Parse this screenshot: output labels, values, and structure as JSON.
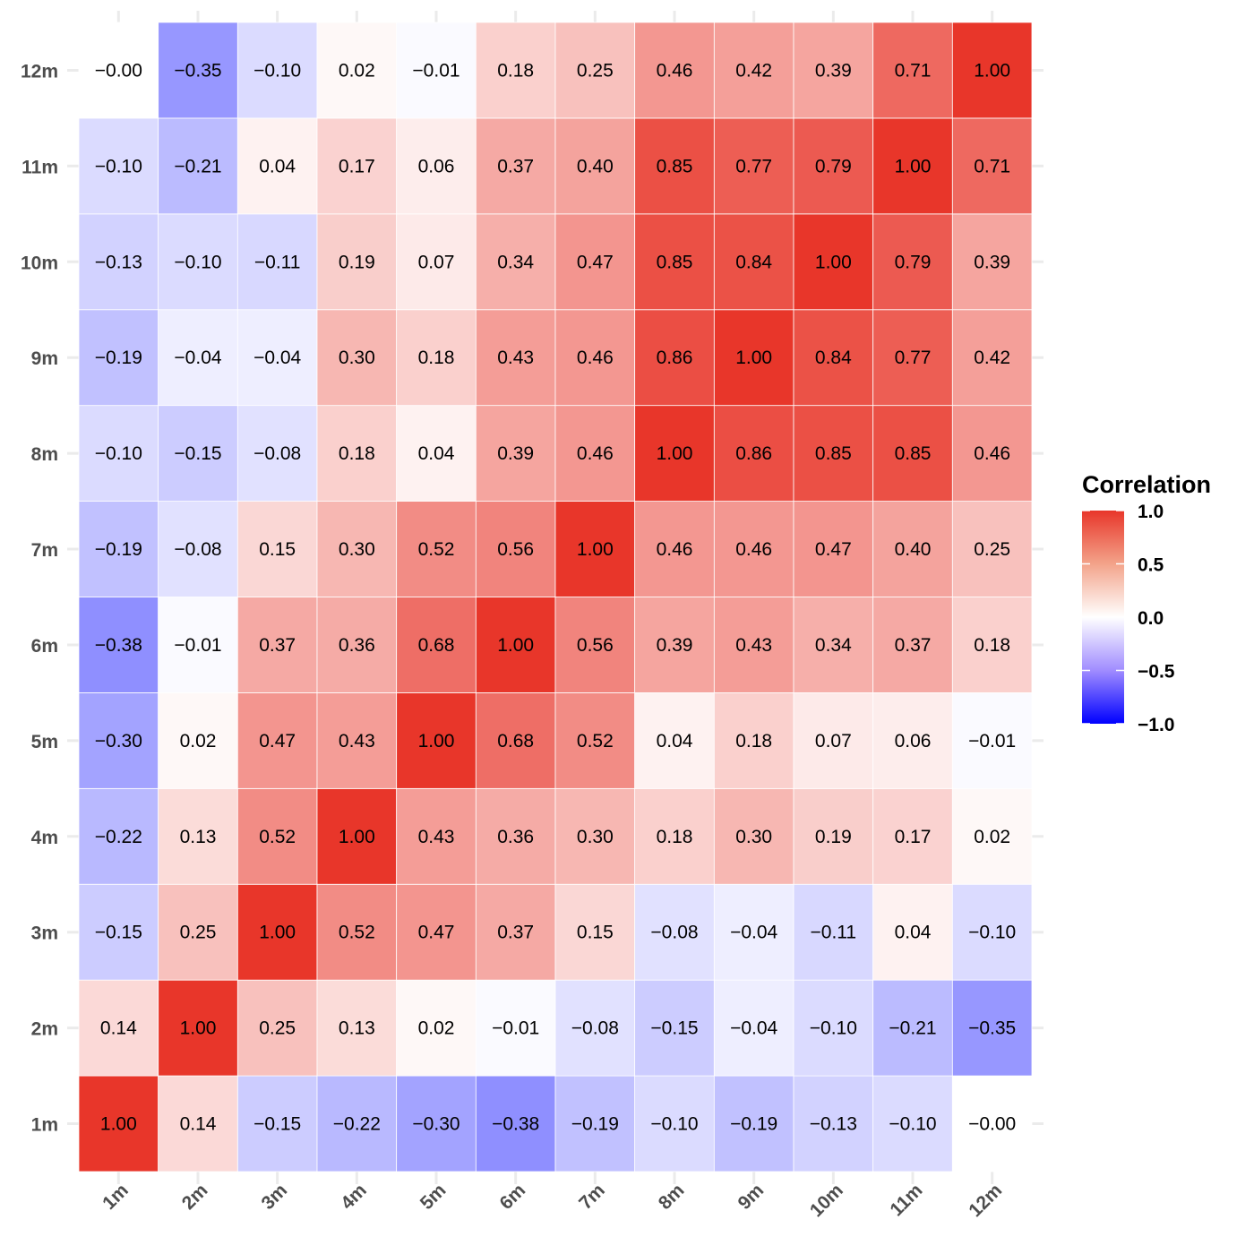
{
  "chart_data": {
    "type": "heatmap",
    "x_categories": [
      "1m",
      "2m",
      "3m",
      "4m",
      "5m",
      "6m",
      "7m",
      "8m",
      "9m",
      "10m",
      "11m",
      "12m"
    ],
    "y_categories": [
      "1m",
      "2m",
      "3m",
      "4m",
      "5m",
      "6m",
      "7m",
      "8m",
      "9m",
      "10m",
      "11m",
      "12m"
    ],
    "values": [
      [
        1.0,
        0.14,
        -0.15,
        -0.22,
        -0.3,
        -0.38,
        -0.19,
        -0.1,
        -0.19,
        -0.13,
        -0.1,
        -0.0
      ],
      [
        0.14,
        1.0,
        0.25,
        0.13,
        0.02,
        -0.01,
        -0.08,
        -0.15,
        -0.04,
        -0.1,
        -0.21,
        -0.35
      ],
      [
        -0.15,
        0.25,
        1.0,
        0.52,
        0.47,
        0.37,
        0.15,
        -0.08,
        -0.04,
        -0.11,
        0.04,
        -0.1
      ],
      [
        -0.22,
        0.13,
        0.52,
        1.0,
        0.43,
        0.36,
        0.3,
        0.18,
        0.3,
        0.19,
        0.17,
        0.02
      ],
      [
        -0.3,
        0.02,
        0.47,
        0.43,
        1.0,
        0.68,
        0.52,
        0.04,
        0.18,
        0.07,
        0.06,
        -0.01
      ],
      [
        -0.38,
        -0.01,
        0.37,
        0.36,
        0.68,
        1.0,
        0.56,
        0.39,
        0.43,
        0.34,
        0.37,
        0.18
      ],
      [
        -0.19,
        -0.08,
        0.15,
        0.3,
        0.52,
        0.56,
        1.0,
        0.46,
        0.46,
        0.47,
        0.4,
        0.25
      ],
      [
        -0.1,
        -0.15,
        -0.08,
        0.18,
        0.04,
        0.39,
        0.46,
        1.0,
        0.86,
        0.85,
        0.85,
        0.46
      ],
      [
        -0.19,
        -0.04,
        -0.04,
        0.3,
        0.18,
        0.43,
        0.46,
        0.86,
        1.0,
        0.84,
        0.77,
        0.42
      ],
      [
        -0.13,
        -0.1,
        -0.11,
        0.19,
        0.07,
        0.34,
        0.47,
        0.85,
        0.84,
        1.0,
        0.79,
        0.39
      ],
      [
        -0.1,
        -0.21,
        0.04,
        0.17,
        0.06,
        0.37,
        0.4,
        0.85,
        0.77,
        0.79,
        1.0,
        0.71
      ],
      [
        -0.0,
        -0.35,
        -0.1,
        0.02,
        -0.01,
        0.18,
        0.25,
        0.46,
        0.42,
        0.39,
        0.71,
        1.0
      ]
    ],
    "cell_labels": [
      [
        "1.00",
        "0.14",
        "−0.15",
        "−0.22",
        "−0.30",
        "−0.38",
        "−0.19",
        "−0.10",
        "−0.19",
        "−0.13",
        "−0.10",
        "−0.00"
      ],
      [
        "0.14",
        "1.00",
        "0.25",
        "0.13",
        "0.02",
        "−0.01",
        "−0.08",
        "−0.15",
        "−0.04",
        "−0.10",
        "−0.21",
        "−0.35"
      ],
      [
        "−0.15",
        "0.25",
        "1.00",
        "0.52",
        "0.47",
        "0.37",
        "0.15",
        "−0.08",
        "−0.04",
        "−0.11",
        "0.04",
        "−0.10"
      ],
      [
        "−0.22",
        "0.13",
        "0.52",
        "1.00",
        "0.43",
        "0.36",
        "0.30",
        "0.18",
        "0.30",
        "0.19",
        "0.17",
        "0.02"
      ],
      [
        "−0.30",
        "0.02",
        "0.47",
        "0.43",
        "1.00",
        "0.68",
        "0.52",
        "0.04",
        "0.18",
        "0.07",
        "0.06",
        "−0.01"
      ],
      [
        "−0.38",
        "−0.01",
        "0.37",
        "0.36",
        "0.68",
        "1.00",
        "0.56",
        "0.39",
        "0.43",
        "0.34",
        "0.37",
        "0.18"
      ],
      [
        "−0.19",
        "−0.08",
        "0.15",
        "0.30",
        "0.52",
        "0.56",
        "1.00",
        "0.46",
        "0.46",
        "0.47",
        "0.40",
        "0.25"
      ],
      [
        "−0.10",
        "−0.15",
        "−0.08",
        "0.18",
        "0.04",
        "0.39",
        "0.46",
        "1.00",
        "0.86",
        "0.85",
        "0.85",
        "0.46"
      ],
      [
        "−0.19",
        "−0.04",
        "−0.04",
        "0.30",
        "0.18",
        "0.43",
        "0.46",
        "0.86",
        "1.00",
        "0.84",
        "0.77",
        "0.42"
      ],
      [
        "−0.13",
        "−0.10",
        "−0.11",
        "0.19",
        "0.07",
        "0.34",
        "0.47",
        "0.85",
        "0.84",
        "1.00",
        "0.79",
        "0.39"
      ],
      [
        "−0.10",
        "−0.21",
        "0.04",
        "0.17",
        "0.06",
        "0.37",
        "0.40",
        "0.85",
        "0.77",
        "0.79",
        "1.00",
        "0.71"
      ],
      [
        "−0.00",
        "−0.35",
        "−0.10",
        "0.02",
        "−0.01",
        "0.18",
        "0.25",
        "0.46",
        "0.42",
        "0.39",
        "0.71",
        "1.00"
      ]
    ],
    "value_range": [
      -1,
      1
    ],
    "colors": {
      "low": "#0000ff",
      "mid": "#ffffff",
      "high": "#e8362a"
    },
    "legend": {
      "title": "Correlation",
      "ticks": [
        1.0,
        0.5,
        0.0,
        -0.5,
        -1.0
      ],
      "tick_labels": [
        "1.0",
        "0.5",
        "0.0",
        "−0.5",
        "−1.0"
      ],
      "placement": "right"
    },
    "grid": true
  }
}
